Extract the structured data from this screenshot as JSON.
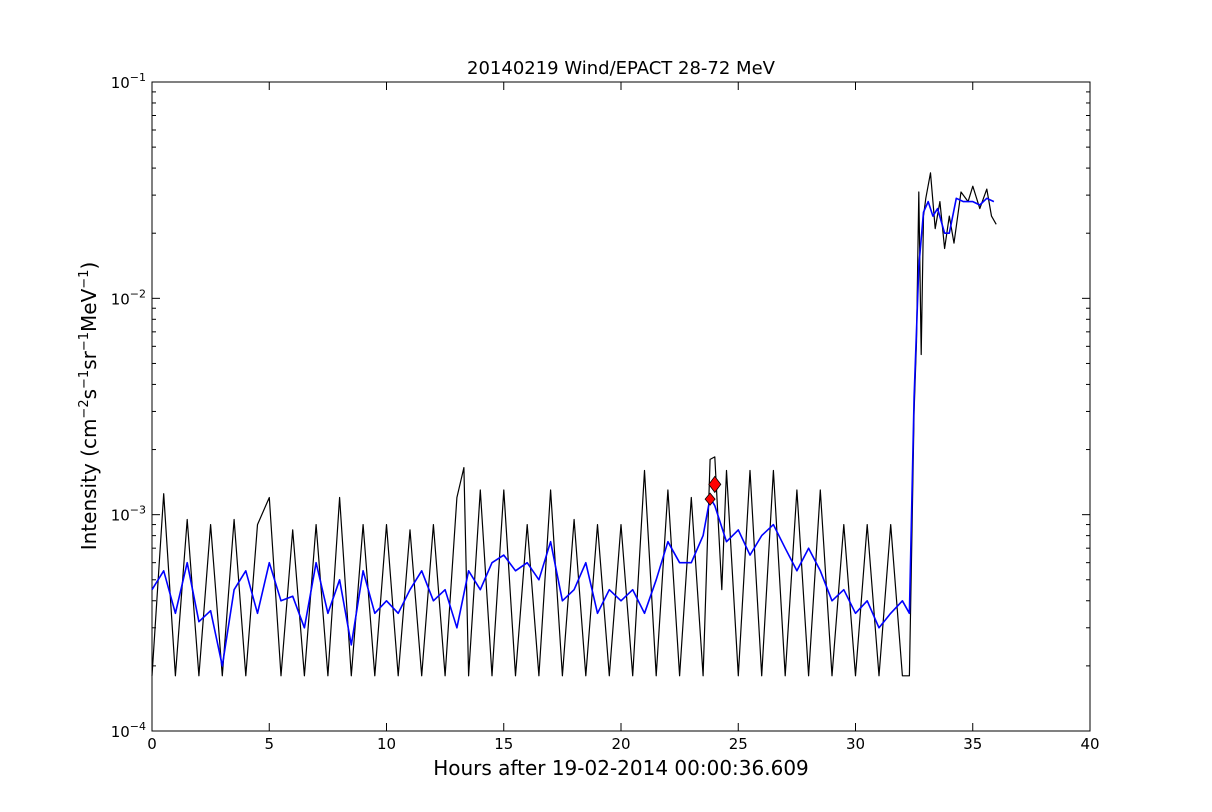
{
  "chart_data": {
    "type": "line",
    "title": "20140219 Wind/EPACT 28-72 MeV",
    "xlabel": "Hours after 19-02-2014 00:00:36.609",
    "ylabel_prefix": "Intensity (cm",
    "ylabel_exp1": "−2",
    "ylabel_s": "s",
    "ylabel_exp2": "−1",
    "ylabel_sr": "sr",
    "ylabel_exp3": "−1",
    "ylabel_mev": "MeV",
    "ylabel_exp4": "−1",
    "ylabel_suffix": ")",
    "xlim": [
      0,
      40
    ],
    "ylim": [
      0.0001,
      0.1
    ],
    "yscale": "log",
    "grid": false,
    "x_ticks": [
      {
        "value": 0,
        "label": "0"
      },
      {
        "value": 5,
        "label": "5"
      },
      {
        "value": 10,
        "label": "10"
      },
      {
        "value": 15,
        "label": "15"
      },
      {
        "value": 20,
        "label": "20"
      },
      {
        "value": 25,
        "label": "25"
      },
      {
        "value": 30,
        "label": "30"
      },
      {
        "value": 35,
        "label": "35"
      },
      {
        "value": 40,
        "label": "40"
      }
    ],
    "y_ticks": [
      {
        "value": 0.0001,
        "base": "10",
        "exp": "−4"
      },
      {
        "value": 0.001,
        "base": "10",
        "exp": "−3"
      },
      {
        "value": 0.01,
        "base": "10",
        "exp": "−2"
      },
      {
        "value": 0.1,
        "base": "10",
        "exp": "−1"
      }
    ],
    "series": [
      {
        "role": "raw intensity",
        "color": "#000000",
        "x": [
          0.0,
          0.5,
          1.0,
          1.5,
          2.0,
          2.5,
          3.0,
          3.5,
          4.0,
          4.5,
          5.0,
          5.5,
          6.0,
          6.5,
          7.0,
          7.5,
          8.0,
          8.5,
          9.0,
          9.5,
          10.0,
          10.5,
          11.0,
          11.5,
          12.0,
          12.5,
          13.0,
          13.3,
          13.5,
          14.0,
          14.5,
          15.0,
          15.5,
          16.0,
          16.5,
          17.0,
          17.5,
          18.0,
          18.5,
          19.0,
          19.5,
          20.0,
          20.5,
          21.0,
          21.5,
          22.0,
          22.5,
          23.0,
          23.5,
          23.8,
          24.0,
          24.3,
          24.5,
          25.0,
          25.5,
          26.0,
          26.5,
          27.0,
          27.5,
          28.0,
          28.5,
          29.0,
          29.5,
          30.0,
          30.5,
          31.0,
          31.5,
          32.0,
          32.3,
          32.4,
          32.5,
          32.6,
          32.7,
          32.8,
          32.9,
          33.0,
          33.2,
          33.4,
          33.6,
          33.8,
          34.0,
          34.2,
          34.5,
          34.8,
          35.0,
          35.3,
          35.6,
          35.8,
          36.0
        ],
        "values": [
          0.00018,
          0.00125,
          0.00018,
          0.00095,
          0.00018,
          0.0009,
          0.00018,
          0.00095,
          0.00018,
          0.0009,
          0.0012,
          0.00018,
          0.00085,
          0.00018,
          0.0009,
          0.00018,
          0.0012,
          0.00018,
          0.0009,
          0.00018,
          0.0009,
          0.00018,
          0.00085,
          0.00018,
          0.0009,
          0.00018,
          0.0012,
          0.00165,
          0.00018,
          0.0013,
          0.00018,
          0.0013,
          0.00018,
          0.0009,
          0.00018,
          0.0013,
          0.00018,
          0.00095,
          0.00018,
          0.0009,
          0.00018,
          0.0009,
          0.00018,
          0.0016,
          0.00018,
          0.0013,
          0.00018,
          0.0012,
          0.00018,
          0.0018,
          0.00185,
          0.00045,
          0.0016,
          0.00018,
          0.0016,
          0.00018,
          0.0016,
          0.00018,
          0.0013,
          0.00018,
          0.0013,
          0.00018,
          0.0009,
          0.00018,
          0.0009,
          0.00018,
          0.0009,
          0.00018,
          0.00018,
          0.00075,
          0.003,
          0.0063,
          0.031,
          0.0055,
          0.024,
          0.029,
          0.038,
          0.021,
          0.028,
          0.017,
          0.024,
          0.018,
          0.031,
          0.028,
          0.033,
          0.026,
          0.032,
          0.024,
          0.022
        ]
      },
      {
        "role": "smoothed intensity",
        "color": "#0000ff",
        "x": [
          0.0,
          0.5,
          1.0,
          1.5,
          2.0,
          2.5,
          3.0,
          3.5,
          4.0,
          4.5,
          5.0,
          5.5,
          6.0,
          6.5,
          7.0,
          7.5,
          8.0,
          8.5,
          9.0,
          9.5,
          10.0,
          10.5,
          11.0,
          11.5,
          12.0,
          12.5,
          13.0,
          13.5,
          14.0,
          14.5,
          15.0,
          15.5,
          16.0,
          16.5,
          17.0,
          17.5,
          18.0,
          18.5,
          19.0,
          19.5,
          20.0,
          20.5,
          21.0,
          21.5,
          22.0,
          22.5,
          23.0,
          23.5,
          23.8,
          24.0,
          24.5,
          25.0,
          25.5,
          26.0,
          26.5,
          27.0,
          27.5,
          28.0,
          28.5,
          29.0,
          29.5,
          30.0,
          30.5,
          31.0,
          31.5,
          32.0,
          32.3,
          32.5,
          32.7,
          32.9,
          33.1,
          33.3,
          33.5,
          33.8,
          34.0,
          34.3,
          34.6,
          35.0,
          35.3,
          35.6,
          35.9
        ],
        "values": [
          0.00045,
          0.00055,
          0.00035,
          0.0006,
          0.00032,
          0.00036,
          0.0002,
          0.00045,
          0.00055,
          0.00035,
          0.0006,
          0.0004,
          0.00042,
          0.0003,
          0.0006,
          0.00035,
          0.0005,
          0.00025,
          0.00055,
          0.00035,
          0.0004,
          0.00035,
          0.00045,
          0.00055,
          0.0004,
          0.00045,
          0.0003,
          0.00055,
          0.00045,
          0.0006,
          0.00065,
          0.00055,
          0.0006,
          0.0005,
          0.00075,
          0.0004,
          0.00045,
          0.0006,
          0.00035,
          0.00045,
          0.0004,
          0.00045,
          0.00035,
          0.0005,
          0.00075,
          0.0006,
          0.0006,
          0.0008,
          0.0012,
          0.0011,
          0.00075,
          0.00085,
          0.00065,
          0.0008,
          0.0009,
          0.0007,
          0.00055,
          0.0007,
          0.00055,
          0.0004,
          0.00045,
          0.00035,
          0.0004,
          0.0003,
          0.00035,
          0.0004,
          0.00035,
          0.0035,
          0.014,
          0.025,
          0.028,
          0.024,
          0.026,
          0.02,
          0.02,
          0.029,
          0.028,
          0.028,
          0.027,
          0.029,
          0.028
        ]
      }
    ],
    "markers": [
      {
        "x": 23.8,
        "y": 0.00118,
        "color": "#ff0000",
        "shape": "diamond",
        "size": "small"
      },
      {
        "x": 24.0,
        "y": 0.00138,
        "color": "#ff0000",
        "shape": "diamond",
        "size": "large"
      }
    ]
  }
}
